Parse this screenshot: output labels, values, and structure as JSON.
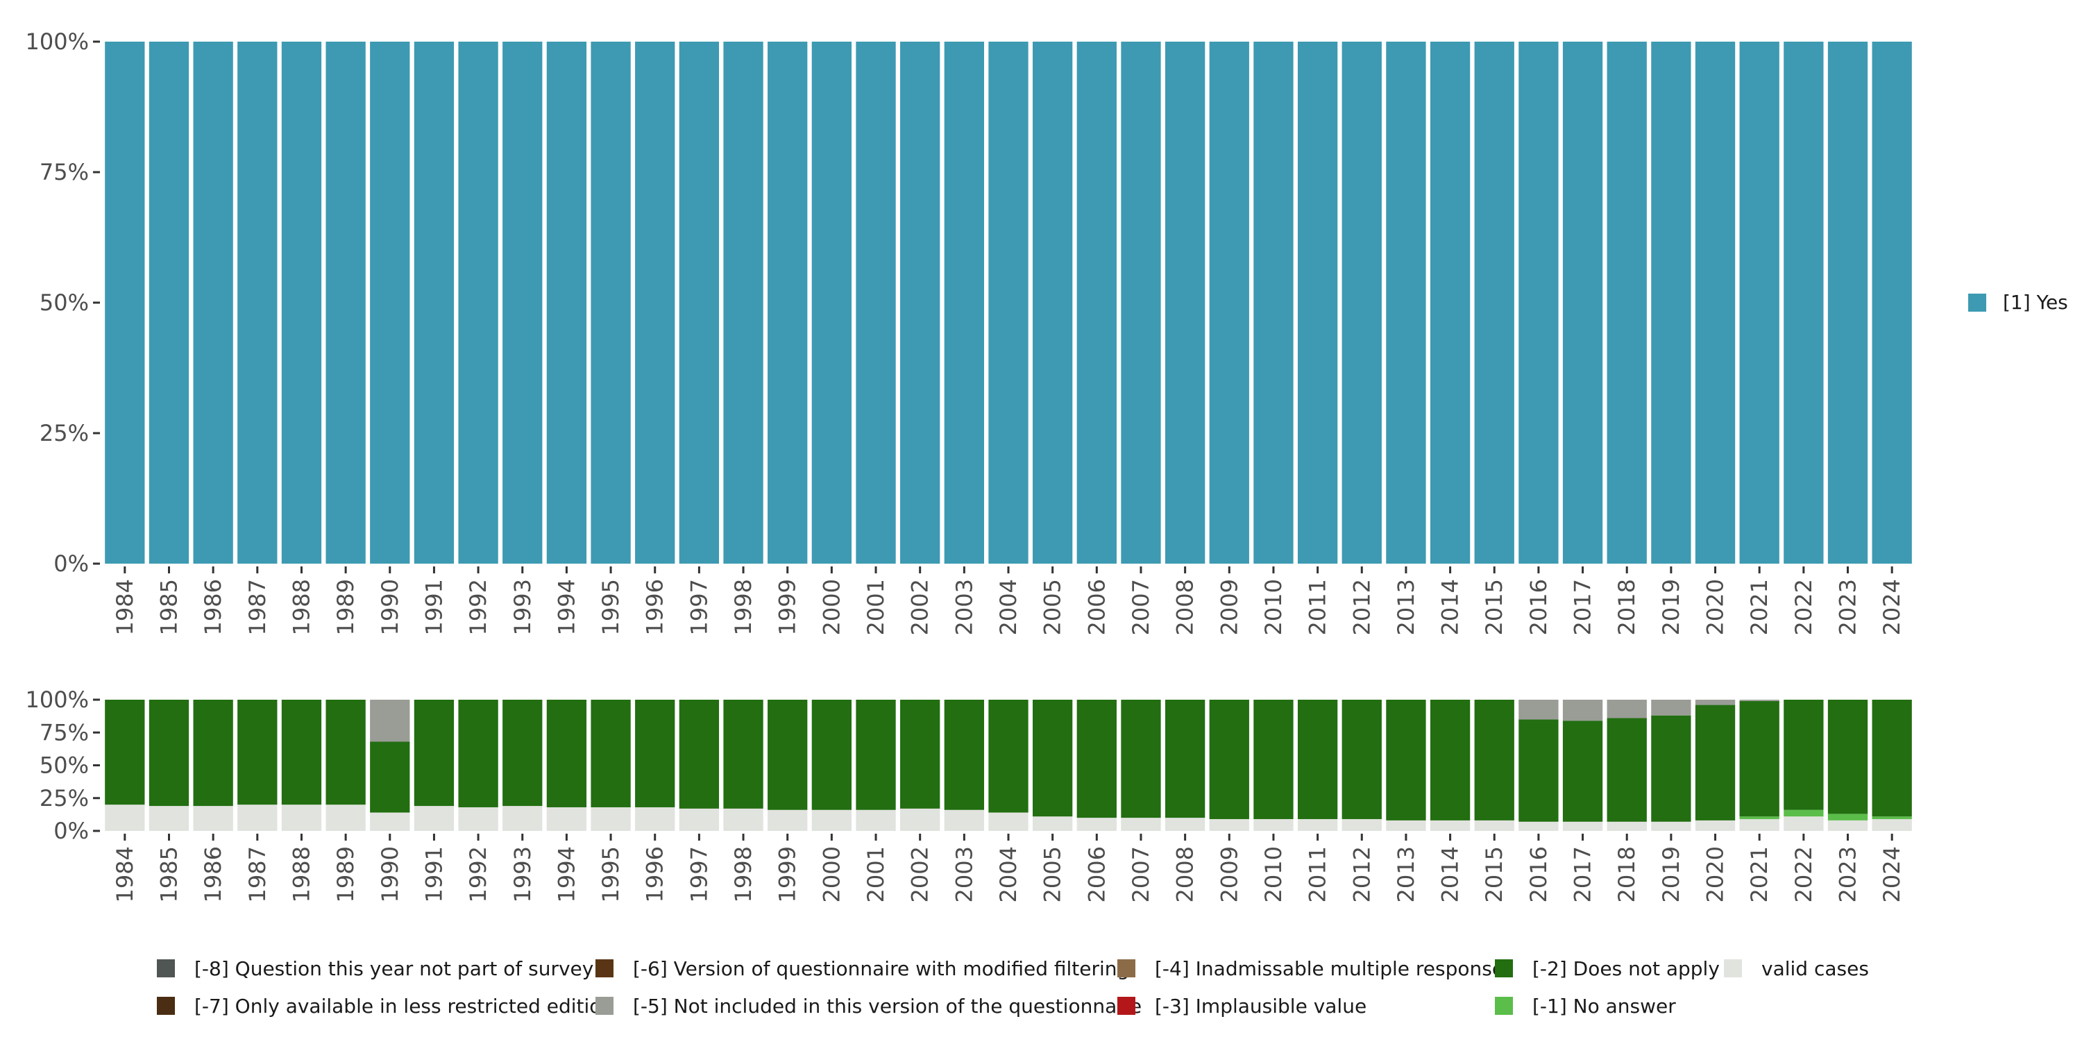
{
  "chart_data": [
    {
      "type": "bar",
      "stacked": true,
      "title": "",
      "xlabel": "",
      "ylabel": "",
      "ylim": [
        0,
        1
      ],
      "y_ticks": [
        "0%",
        "25%",
        "50%",
        "75%",
        "100%"
      ],
      "categories": [
        "1984",
        "1985",
        "1986",
        "1987",
        "1988",
        "1989",
        "1990",
        "1991",
        "1992",
        "1993",
        "1994",
        "1995",
        "1996",
        "1997",
        "1998",
        "1999",
        "2000",
        "2001",
        "2002",
        "2003",
        "2004",
        "2005",
        "2006",
        "2007",
        "2008",
        "2009",
        "2010",
        "2011",
        "2012",
        "2013",
        "2014",
        "2015",
        "2016",
        "2017",
        "2018",
        "2019",
        "2020",
        "2021",
        "2022",
        "2023",
        "2024"
      ],
      "series": [
        {
          "name": "[1] Yes",
          "color": "#3d9ab2",
          "values": [
            1,
            1,
            1,
            1,
            1,
            1,
            1,
            1,
            1,
            1,
            1,
            1,
            1,
            1,
            1,
            1,
            1,
            1,
            1,
            1,
            1,
            1,
            1,
            1,
            1,
            1,
            1,
            1,
            1,
            1,
            1,
            1,
            1,
            1,
            1,
            1,
            1,
            1,
            1,
            1,
            1
          ]
        }
      ],
      "legend": {
        "position": "right",
        "items": [
          {
            "label": "[1] Yes",
            "color": "#3d9ab2"
          }
        ]
      }
    },
    {
      "type": "bar",
      "stacked": true,
      "title": "",
      "xlabel": "",
      "ylabel": "",
      "ylim": [
        0,
        1
      ],
      "y_ticks": [
        "0%",
        "25%",
        "50%",
        "75%",
        "100%"
      ],
      "categories": [
        "1984",
        "1985",
        "1986",
        "1987",
        "1988",
        "1989",
        "1990",
        "1991",
        "1992",
        "1993",
        "1994",
        "1995",
        "1996",
        "1997",
        "1998",
        "1999",
        "2000",
        "2001",
        "2002",
        "2003",
        "2004",
        "2005",
        "2006",
        "2007",
        "2008",
        "2009",
        "2010",
        "2011",
        "2012",
        "2013",
        "2014",
        "2015",
        "2016",
        "2017",
        "2018",
        "2019",
        "2020",
        "2021",
        "2022",
        "2023",
        "2024"
      ],
      "series": [
        {
          "name": "valid cases",
          "color": "#e1e3de",
          "values": [
            0.2,
            0.19,
            0.19,
            0.2,
            0.2,
            0.2,
            0.14,
            0.19,
            0.18,
            0.19,
            0.18,
            0.18,
            0.18,
            0.17,
            0.17,
            0.16,
            0.16,
            0.16,
            0.17,
            0.16,
            0.14,
            0.11,
            0.1,
            0.1,
            0.1,
            0.09,
            0.09,
            0.09,
            0.09,
            0.08,
            0.08,
            0.08,
            0.07,
            0.07,
            0.07,
            0.07,
            0.08,
            0.09,
            0.11,
            0.08,
            0.09
          ]
        },
        {
          "name": "[-1] No answer",
          "color": "#5bbd4a",
          "values": [
            0,
            0,
            0,
            0,
            0,
            0,
            0,
            0,
            0,
            0,
            0,
            0,
            0,
            0,
            0,
            0,
            0,
            0,
            0,
            0,
            0,
            0,
            0,
            0,
            0,
            0,
            0,
            0,
            0,
            0,
            0,
            0,
            0,
            0,
            0,
            0,
            0,
            0.02,
            0.05,
            0.05,
            0.02
          ]
        },
        {
          "name": "[-2] Does not apply",
          "color": "#226e11",
          "values": [
            0.8,
            0.81,
            0.81,
            0.8,
            0.8,
            0.8,
            0.54,
            0.81,
            0.82,
            0.81,
            0.82,
            0.82,
            0.82,
            0.83,
            0.83,
            0.84,
            0.84,
            0.84,
            0.83,
            0.84,
            0.86,
            0.89,
            0.9,
            0.9,
            0.9,
            0.91,
            0.91,
            0.91,
            0.91,
            0.92,
            0.92,
            0.92,
            0.78,
            0.77,
            0.79,
            0.81,
            0.88,
            0.88,
            0.84,
            0.87,
            0.89
          ]
        },
        {
          "name": "[-5] Not included in this version of the questionnaire",
          "color": "#9a9c96",
          "values": [
            0,
            0,
            0,
            0,
            0,
            0,
            0.32,
            0,
            0,
            0,
            0,
            0,
            0,
            0,
            0,
            0,
            0,
            0,
            0,
            0,
            0,
            0,
            0,
            0,
            0,
            0,
            0,
            0,
            0,
            0,
            0,
            0,
            0.15,
            0.16,
            0.14,
            0.12,
            0.04,
            0.01,
            0,
            0,
            0
          ]
        }
      ],
      "legend": {
        "position": "bottom",
        "items": [
          {
            "label": "[-8] Question this year not part of survey",
            "color": "#505654"
          },
          {
            "label": "[-7] Only available in less restricted edition",
            "color": "#4a2d12"
          },
          {
            "label": "[-6] Version of questionnaire with modified filtering",
            "color": "#5a3515"
          },
          {
            "label": "[-5] Not included in this version of the questionnaire",
            "color": "#9a9c96"
          },
          {
            "label": "[-4] Inadmissable multiple response",
            "color": "#8c6c48"
          },
          {
            "label": "[-3] Implausible value",
            "color": "#b3171a"
          },
          {
            "label": "[-2] Does not apply",
            "color": "#226e11"
          },
          {
            "label": "[-1] No answer",
            "color": "#5bbd4a"
          },
          {
            "label": "valid cases",
            "color": "#e1e3de"
          }
        ]
      }
    }
  ]
}
